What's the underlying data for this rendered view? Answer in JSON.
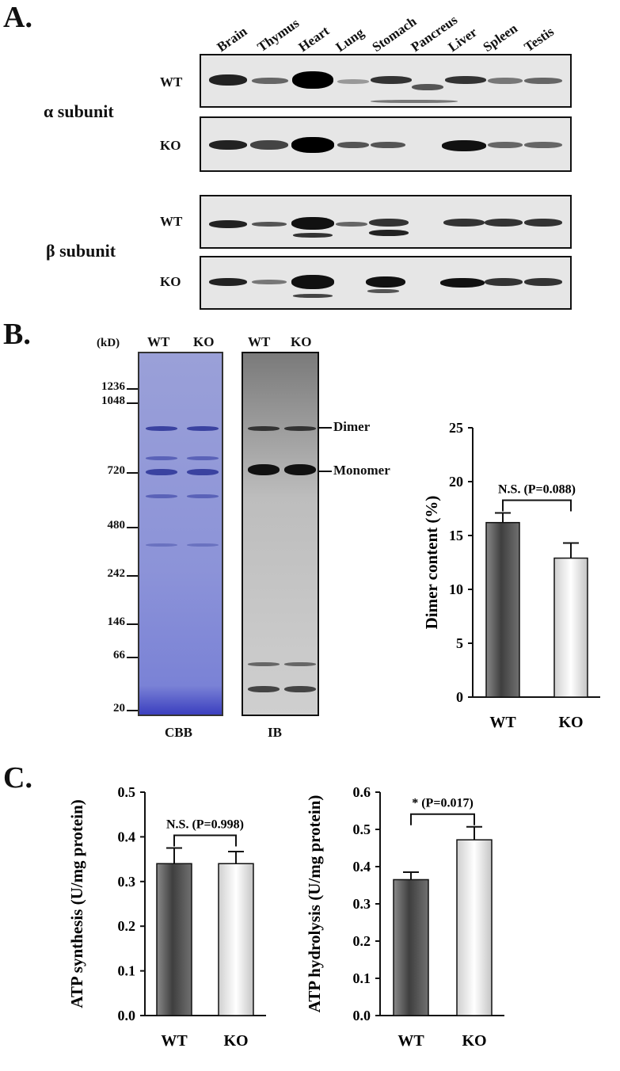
{
  "panel_a": {
    "label": "A.",
    "tissues": [
      "Brain",
      "Thymus",
      "Heart",
      "Lung",
      "Stomach",
      "Pancreus",
      "Liver",
      "Spleen",
      "Testis"
    ],
    "alpha_label": "α  subunit",
    "beta_label": "β  subunit",
    "wt": "WT",
    "ko": "KO"
  },
  "panel_b": {
    "label": "B.",
    "kd_label": "(kD)",
    "lanes": [
      "WT",
      "KO"
    ],
    "markers": [
      "1236",
      "1048",
      "720",
      "480",
      "242",
      "146",
      "66",
      "20"
    ],
    "cbb": "CBB",
    "ib": "IB",
    "dimer": "Dimer",
    "monomer": "Monomer"
  },
  "panel_c": {
    "label": "C."
  },
  "chart_data": [
    {
      "type": "bar",
      "categories": [
        "WT",
        "KO"
      ],
      "values": [
        16.2,
        12.9
      ],
      "errors": [
        0.9,
        1.4
      ],
      "ylabel": "Dimer content (%)",
      "ylim": [
        0,
        25
      ],
      "yticks": [
        "0",
        "5",
        "10",
        "15",
        "20",
        "25"
      ],
      "annotation": "N.S. (P=0.088)",
      "colors": [
        "#555555",
        "#f2f2f2"
      ]
    },
    {
      "type": "bar",
      "categories": [
        "WT",
        "KO"
      ],
      "values": [
        0.34,
        0.34
      ],
      "errors": [
        0.035,
        0.027
      ],
      "ylabel": "ATP synthesis  (U/mg protein)",
      "ylim": [
        0,
        0.5
      ],
      "yticks": [
        "0.0",
        "0.1",
        "0.2",
        "0.3",
        "0.4",
        "0.5"
      ],
      "annotation": "N.S. (P=0.998)",
      "colors": [
        "#555555",
        "#f2f2f2"
      ]
    },
    {
      "type": "bar",
      "categories": [
        "WT",
        "KO"
      ],
      "values": [
        0.365,
        0.472
      ],
      "errors": [
        0.02,
        0.035
      ],
      "ylabel": "ATP hydrolysis (U/mg protein)",
      "ylim": [
        0,
        0.6
      ],
      "yticks": [
        "0.0",
        "0.1",
        "0.2",
        "0.3",
        "0.4",
        "0.5",
        "0.6"
      ],
      "annotation": "* (P=0.017)",
      "colors": [
        "#555555",
        "#f2f2f2"
      ]
    }
  ]
}
